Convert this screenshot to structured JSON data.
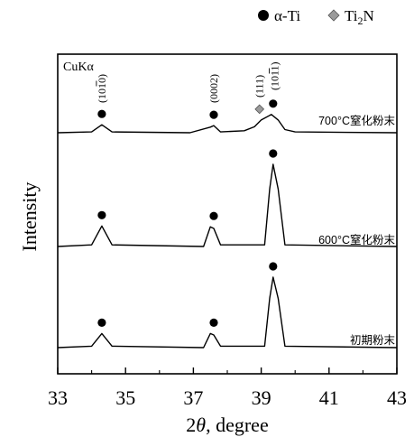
{
  "chart_data": {
    "type": "line",
    "xlabel": "2θ, degree",
    "ylabel": "Intensity",
    "xlim": [
      33,
      43
    ],
    "xticks": [
      "33",
      "35",
      "37",
      "39",
      "41",
      "43"
    ],
    "annotation_source": "CuKα",
    "legend": [
      {
        "name": "α-Ti",
        "marker": "circle",
        "color": "#000000"
      },
      {
        "name": "Ti2N",
        "marker": "diamond",
        "color": "#9a9a9a"
      }
    ],
    "peak_labels": [
      {
        "text": "(1010)",
        "x": 34.3
      },
      {
        "text": "(0002)",
        "x": 37.6
      },
      {
        "text": "(111)",
        "x": 38.95
      },
      {
        "text": "(1011)",
        "x": 39.35
      }
    ],
    "series": [
      {
        "name": "700°C窒化粉末",
        "x": [
          33.0,
          34.0,
          34.3,
          34.6,
          36.9,
          37.5,
          37.6,
          37.8,
          38.5,
          38.8,
          39.0,
          39.3,
          39.5,
          39.7,
          40.0,
          43.0
        ],
        "y": [
          0.0,
          0.02,
          0.2,
          0.02,
          0.0,
          0.14,
          0.18,
          0.02,
          0.05,
          0.15,
          0.32,
          0.46,
          0.32,
          0.08,
          0.02,
          0.0
        ],
        "markers": [
          {
            "x": 34.3,
            "type": "circle"
          },
          {
            "x": 37.6,
            "type": "circle"
          },
          {
            "x": 38.95,
            "type": "diamond"
          },
          {
            "x": 39.35,
            "type": "circle"
          }
        ]
      },
      {
        "name": "600°C窒化粉末",
        "x": [
          33.0,
          34.0,
          34.3,
          34.6,
          37.3,
          37.5,
          37.6,
          37.8,
          39.1,
          39.25,
          39.35,
          39.5,
          39.7,
          43.0
        ],
        "y": [
          0.0,
          0.02,
          0.25,
          0.02,
          0.0,
          0.24,
          0.22,
          0.02,
          0.02,
          0.7,
          1.0,
          0.7,
          0.02,
          0.0
        ],
        "markers": [
          {
            "x": 34.3,
            "type": "circle"
          },
          {
            "x": 37.6,
            "type": "circle"
          },
          {
            "x": 39.35,
            "type": "circle"
          }
        ]
      },
      {
        "name": "初期粉末",
        "x": [
          33.0,
          34.0,
          34.3,
          34.6,
          37.3,
          37.5,
          37.6,
          37.8,
          39.1,
          39.25,
          39.35,
          39.5,
          39.7,
          43.0
        ],
        "y": [
          0.0,
          0.02,
          0.2,
          0.02,
          0.0,
          0.2,
          0.18,
          0.02,
          0.02,
          0.7,
          1.0,
          0.7,
          0.02,
          0.0
        ],
        "markers": [
          {
            "x": 34.3,
            "type": "circle"
          },
          {
            "x": 37.6,
            "type": "circle"
          },
          {
            "x": 39.35,
            "type": "circle"
          }
        ]
      }
    ],
    "grid": false,
    "legend_position": "top-right"
  }
}
